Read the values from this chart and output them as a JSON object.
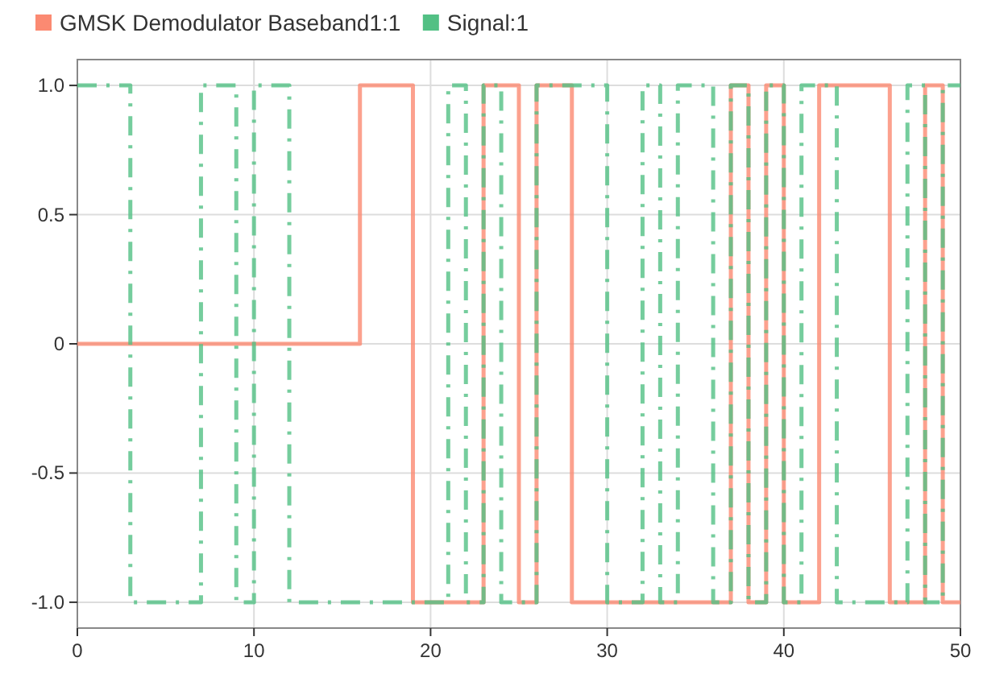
{
  "chart_data": {
    "type": "step",
    "legend": "top left",
    "grid": true,
    "xlim": [
      0,
      50
    ],
    "xticks": [
      0,
      10,
      20,
      30,
      40,
      50
    ],
    "ylim": [
      -1.1,
      1.1
    ],
    "yticks": [
      {
        "value": 1,
        "label": "1.0"
      },
      0.5,
      0,
      -0.5,
      {
        "value": -1,
        "label": "-1.0"
      }
    ],
    "series": [
      {
        "name": "GMSK Demodulator Baseband1:1",
        "color": "#fb8a72",
        "line_style": "solid",
        "x": [
          0,
          16,
          19,
          23,
          25,
          26,
          28,
          37,
          38,
          39,
          40,
          42,
          46,
          48,
          49,
          50
        ],
        "values": [
          0,
          1,
          -1,
          1,
          -1,
          1,
          -1,
          1,
          -1,
          1,
          -1,
          1,
          -1,
          1,
          -1,
          -1
        ]
      },
      {
        "name": "Signal:1",
        "color": "#52c084",
        "line_style": "dashed",
        "x": [
          0,
          3,
          7,
          9,
          10,
          12,
          21,
          22,
          23,
          24,
          26,
          30,
          32,
          33,
          34,
          36,
          37,
          38,
          39,
          40,
          41,
          43,
          47,
          48,
          49,
          50
        ],
        "values": [
          1,
          -1,
          1,
          -1,
          1,
          -1,
          1,
          -1,
          1,
          -1,
          1,
          -1,
          1,
          -1,
          1,
          -1,
          1,
          -1,
          1,
          -1,
          1,
          -1,
          1,
          -1,
          1,
          1
        ]
      }
    ]
  }
}
